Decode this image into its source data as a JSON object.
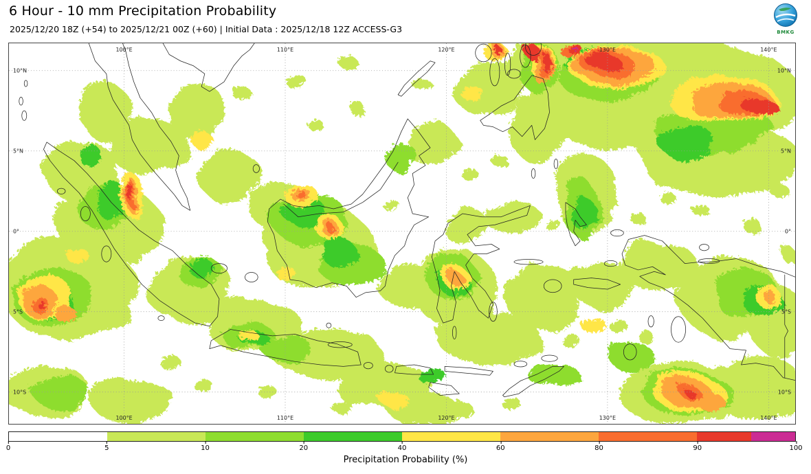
{
  "header": {
    "title": "6 Hour - 10 mm Precipitation Probability",
    "subtitle": "2025/12/20 18Z (+54) to 2025/12/21 00Z (+60) | Initial Data : 2025/12/18 12Z ACCESS-G3",
    "logo_text": "BMKG"
  },
  "map": {
    "extent": {
      "lon_min": 92.85,
      "lon_max": 141.65,
      "lat_min": -11.98,
      "lat_max": 11.7
    },
    "lon_ticks": [
      {
        "value": 100,
        "label": "100°E"
      },
      {
        "value": 110,
        "label": "110°E"
      },
      {
        "value": 120,
        "label": "120°E"
      },
      {
        "value": 130,
        "label": "130°E"
      },
      {
        "value": 140,
        "label": "140°E"
      }
    ],
    "lat_ticks": [
      {
        "value": 10,
        "label": "10°N"
      },
      {
        "value": 5,
        "label": "5°N"
      },
      {
        "value": 0,
        "label": "0°"
      },
      {
        "value": -5,
        "label": "5°S"
      },
      {
        "value": -10,
        "label": "10°S"
      }
    ],
    "field": {
      "palette": {
        "1": "#c9e857",
        "2": "#8edd2f",
        "3": "#3ccb2a",
        "4": "#ffe646",
        "5": "#fda63e",
        "6": "#f96d2f",
        "7": "#e8392b",
        "8": "#cb2c94"
      },
      "blobs": [
        [
          133.5,
          8.5,
          8.5,
          3.6,
          1
        ],
        [
          128,
          10.5,
          4.5,
          2.0,
          1
        ],
        [
          137,
          4.5,
          5.0,
          2.2,
          1
        ],
        [
          96.5,
          -3.5,
          4.2,
          3.2,
          1
        ],
        [
          99,
          0.5,
          3.2,
          2.5,
          1
        ],
        [
          97.3,
          3.8,
          2.2,
          2.0,
          1
        ],
        [
          101.5,
          5.3,
          2.5,
          1.8,
          1
        ],
        [
          104,
          -3.5,
          2.8,
          2.0,
          1
        ],
        [
          108,
          -5.8,
          3.0,
          1.6,
          1
        ],
        [
          112.5,
          -7.5,
          3.5,
          1.4,
          1
        ],
        [
          112,
          -1,
          3.5,
          2.6,
          1
        ],
        [
          110,
          1.5,
          2.2,
          1.6,
          1
        ],
        [
          116,
          -9.5,
          3.0,
          1.6,
          1
        ],
        [
          120.5,
          -3.5,
          2.6,
          2.4,
          1
        ],
        [
          122.5,
          -6.5,
          3.2,
          1.6,
          1
        ],
        [
          126,
          -4,
          2.4,
          2.0,
          1
        ],
        [
          129.5,
          -3.2,
          2.2,
          1.4,
          1
        ],
        [
          134.5,
          -10,
          4.0,
          1.8,
          1
        ],
        [
          139,
          -9.5,
          3.0,
          2.0,
          1
        ],
        [
          137.5,
          -4,
          3.2,
          2.6,
          1
        ],
        [
          140.5,
          -5.5,
          1.8,
          2.2,
          1
        ],
        [
          133,
          -2,
          2.4,
          1.6,
          1
        ],
        [
          128.5,
          2.5,
          1.8,
          2.6,
          1
        ],
        [
          125.5,
          6.5,
          1.6,
          2.2,
          1
        ],
        [
          122.5,
          9,
          2.2,
          1.8,
          1
        ],
        [
          119,
          5.5,
          1.6,
          1.4,
          1
        ],
        [
          95,
          -9.8,
          2.8,
          1.6,
          1
        ],
        [
          100.5,
          -10.5,
          2.6,
          1.4,
          1
        ],
        [
          106.5,
          3.5,
          2.0,
          1.6,
          1
        ],
        [
          104.5,
          7.5,
          1.8,
          1.8,
          1
        ],
        [
          98.8,
          7.5,
          1.6,
          1.8,
          1
        ],
        [
          117.5,
          -3.3,
          1.8,
          1.4,
          1
        ],
        [
          121,
          0.5,
          1.4,
          1.2,
          1
        ],
        [
          124,
          1,
          1.8,
          1.0,
          1
        ],
        [
          118.5,
          -11,
          2.2,
          1.0,
          1
        ],
        [
          105.3,
          6.8,
          0.5,
          0.4,
          1
        ],
        [
          107.2,
          8.7,
          0.6,
          0.4,
          1
        ],
        [
          110.5,
          9.5,
          0.7,
          0.4,
          1
        ],
        [
          113.8,
          10.6,
          0.6,
          0.4,
          1
        ],
        [
          111.8,
          6.7,
          0.5,
          0.35,
          1
        ],
        [
          114.5,
          7.6,
          0.5,
          0.4,
          1
        ],
        [
          118.3,
          9.3,
          0.6,
          0.4,
          1
        ],
        [
          116.4,
          1.8,
          0.5,
          0.4,
          1
        ],
        [
          121.6,
          3.4,
          0.5,
          0.4,
          1
        ],
        [
          123.3,
          4.4,
          0.5,
          0.4,
          1
        ],
        [
          126.7,
          0.3,
          0.5,
          0.4,
          1
        ],
        [
          124.5,
          -3.3,
          0.6,
          0.4,
          1
        ],
        [
          127.5,
          -6.6,
          0.6,
          0.4,
          1
        ],
        [
          130.6,
          -5.8,
          0.6,
          0.45,
          1
        ],
        [
          132.4,
          -6.6,
          0.5,
          0.4,
          1
        ],
        [
          129.9,
          1.9,
          0.6,
          0.4,
          1
        ],
        [
          131.8,
          0.9,
          0.5,
          0.35,
          1
        ],
        [
          133.9,
          1.9,
          0.5,
          0.4,
          1
        ],
        [
          102.6,
          -7.9,
          0.7,
          0.4,
          1
        ],
        [
          104.9,
          -9.6,
          0.6,
          0.4,
          1
        ],
        [
          108.8,
          -9.9,
          0.6,
          0.4,
          1
        ],
        [
          113.5,
          -10.9,
          0.7,
          0.4,
          1
        ],
        [
          120.9,
          -10.9,
          0.6,
          0.4,
          1
        ],
        [
          123.9,
          -10.6,
          0.6,
          0.4,
          1
        ],
        [
          133.2,
          3.3,
          0.5,
          0.4,
          1
        ],
        [
          135.7,
          1.4,
          0.5,
          0.4,
          1
        ],
        [
          139,
          0.3,
          0.6,
          0.4,
          1
        ],
        [
          141,
          -1.2,
          0.5,
          0.4,
          1
        ],
        [
          140.6,
          2.6,
          0.6,
          0.4,
          1
        ],
        [
          129.3,
          5.9,
          0.6,
          0.5,
          1
        ],
        [
          130,
          9.8,
          3.2,
          1.6,
          2
        ],
        [
          136.5,
          6.5,
          3.6,
          1.8,
          2
        ],
        [
          95.5,
          -4,
          2.6,
          1.8,
          2
        ],
        [
          98.5,
          1.8,
          1.6,
          1.6,
          2
        ],
        [
          111.5,
          0.8,
          2.4,
          1.6,
          2
        ],
        [
          114,
          -2,
          2.0,
          1.4,
          2
        ],
        [
          120.3,
          -2.8,
          1.6,
          1.4,
          2
        ],
        [
          134.8,
          -9.9,
          2.8,
          1.3,
          2
        ],
        [
          138.5,
          -3.8,
          2.0,
          1.6,
          2
        ],
        [
          128.3,
          1.5,
          1.1,
          1.8,
          2
        ],
        [
          125.6,
          10.3,
          1.2,
          1.6,
          2
        ],
        [
          96,
          -9.9,
          1.8,
          1.0,
          2
        ],
        [
          104.8,
          -2.6,
          1.4,
          1.0,
          2
        ],
        [
          107.5,
          -6.3,
          1.6,
          0.9,
          2
        ],
        [
          110,
          -7.2,
          1.6,
          0.8,
          2
        ],
        [
          117,
          4.8,
          1.0,
          0.9,
          2
        ],
        [
          126.5,
          -8.8,
          1.6,
          0.8,
          2
        ],
        [
          131.5,
          -7.8,
          1.4,
          0.9,
          2
        ],
        [
          98.9,
          2.2,
          0.9,
          1.3,
          3
        ],
        [
          111.2,
          1.2,
          1.3,
          1.0,
          3
        ],
        [
          113.2,
          -1.2,
          1.1,
          0.9,
          3
        ],
        [
          129.5,
          10.5,
          2.2,
          1.0,
          3
        ],
        [
          135,
          5.5,
          1.8,
          1.0,
          3
        ],
        [
          95.3,
          -4.2,
          1.6,
          1.2,
          3
        ],
        [
          120.5,
          -3.2,
          1.0,
          0.8,
          3
        ],
        [
          134.9,
          -10,
          1.8,
          0.9,
          3
        ],
        [
          139.5,
          -4.2,
          1.2,
          1.0,
          3
        ],
        [
          125.7,
          10.6,
          0.8,
          1.0,
          3
        ],
        [
          107.9,
          -6.5,
          0.9,
          0.5,
          3
        ],
        [
          104.9,
          -2.4,
          0.8,
          0.6,
          3
        ],
        [
          97.6,
          5,
          0.7,
          0.7,
          3
        ],
        [
          128.4,
          1.2,
          0.7,
          1.1,
          3
        ],
        [
          118.9,
          -8.8,
          0.9,
          0.5,
          3
        ],
        [
          130.5,
          10.3,
          3.0,
          1.3,
          4
        ],
        [
          137,
          8.3,
          3.4,
          1.5,
          4
        ],
        [
          95,
          -4,
          1.8,
          1.3,
          4
        ],
        [
          100.3,
          2.4,
          0.8,
          1.3,
          4
        ],
        [
          110.9,
          2.3,
          1.0,
          0.8,
          4
        ],
        [
          112.7,
          0.3,
          0.9,
          0.7,
          4
        ],
        [
          120.6,
          -2.9,
          0.8,
          0.7,
          4
        ],
        [
          134.9,
          -9.9,
          2.2,
          1.1,
          4
        ],
        [
          139.8,
          -3.9,
          0.8,
          0.7,
          4
        ],
        [
          125.7,
          10.8,
          0.9,
          1.0,
          4
        ],
        [
          122.8,
          11.4,
          0.8,
          0.5,
          4
        ],
        [
          116.9,
          -10.6,
          0.9,
          0.5,
          4
        ],
        [
          109.9,
          -2.5,
          0.6,
          0.5,
          4
        ],
        [
          128.9,
          -5.6,
          0.8,
          0.5,
          4
        ],
        [
          104.9,
          5.6,
          0.7,
          0.5,
          4
        ],
        [
          107.6,
          -6.4,
          0.6,
          0.4,
          4
        ],
        [
          96.8,
          -1.2,
          0.7,
          0.5,
          4
        ],
        [
          121.8,
          8.4,
          0.7,
          0.5,
          4
        ],
        [
          130.3,
          10.4,
          2.6,
          1.1,
          5
        ],
        [
          137.5,
          8.2,
          2.6,
          1.2,
          5
        ],
        [
          125.8,
          10.5,
          0.7,
          1.2,
          5
        ],
        [
          94.6,
          -4.2,
          1.2,
          0.9,
          5
        ],
        [
          100.3,
          2.4,
          0.5,
          1.0,
          5
        ],
        [
          110.9,
          2.35,
          0.6,
          0.5,
          5
        ],
        [
          112.7,
          0.3,
          0.55,
          0.45,
          5
        ],
        [
          134.8,
          -9.9,
          1.5,
          0.8,
          5
        ],
        [
          136.2,
          -10.4,
          0.8,
          0.6,
          5
        ],
        [
          120.6,
          -2.95,
          0.45,
          0.4,
          5
        ],
        [
          122.9,
          11.5,
          0.5,
          0.35,
          5
        ],
        [
          139.9,
          -3.9,
          0.4,
          0.35,
          5
        ],
        [
          96.3,
          -5.1,
          0.7,
          0.5,
          5
        ],
        [
          129.8,
          10.6,
          1.6,
          0.8,
          6
        ],
        [
          138.3,
          8.1,
          1.6,
          0.8,
          6
        ],
        [
          125.9,
          10.6,
          0.45,
          0.9,
          6
        ],
        [
          100.3,
          2.45,
          0.32,
          0.8,
          6
        ],
        [
          94.5,
          -4.3,
          0.6,
          0.45,
          6
        ],
        [
          110.9,
          2.35,
          0.3,
          0.28,
          6
        ],
        [
          112.7,
          0.3,
          0.3,
          0.25,
          6
        ],
        [
          135,
          -9.9,
          0.6,
          0.4,
          6
        ],
        [
          127.6,
          11.4,
          0.7,
          0.5,
          6
        ],
        [
          129.6,
          10.7,
          1.0,
          0.55,
          7
        ],
        [
          139.2,
          8,
          1.1,
          0.5,
          7
        ],
        [
          126,
          10.7,
          0.28,
          0.6,
          7
        ],
        [
          127.8,
          11.5,
          0.45,
          0.35,
          7
        ],
        [
          100.3,
          2.5,
          0.18,
          0.5,
          7
        ],
        [
          135,
          -9.95,
          0.3,
          0.22,
          7
        ],
        [
          94.6,
          -4.3,
          0.3,
          0.22,
          7
        ],
        [
          125.1,
          11.4,
          0.5,
          0.4,
          7
        ],
        [
          122.9,
          11.55,
          0.3,
          0.2,
          7
        ],
        [
          127.8,
          11.55,
          0.18,
          0.12,
          8
        ]
      ]
    }
  },
  "colorbar": {
    "title": "Precipitation Probability (%)",
    "tick_labels": [
      "0",
      "5",
      "10",
      "20",
      "40",
      "60",
      "80",
      "90",
      "100"
    ],
    "segments": [
      {
        "color": "#ffffff",
        "width": 1
      },
      {
        "color": "#c9e857",
        "width": 1
      },
      {
        "color": "#8edd2f",
        "width": 1
      },
      {
        "color": "#3ccb2a",
        "width": 1
      },
      {
        "color": "#ffe646",
        "width": 1
      },
      {
        "color": "#fda63e",
        "width": 1
      },
      {
        "color": "#f96d2f",
        "width": 1
      },
      {
        "color": "#e8392b",
        "width": 0.55
      },
      {
        "color": "#cb2c94",
        "width": 0.45
      }
    ]
  }
}
